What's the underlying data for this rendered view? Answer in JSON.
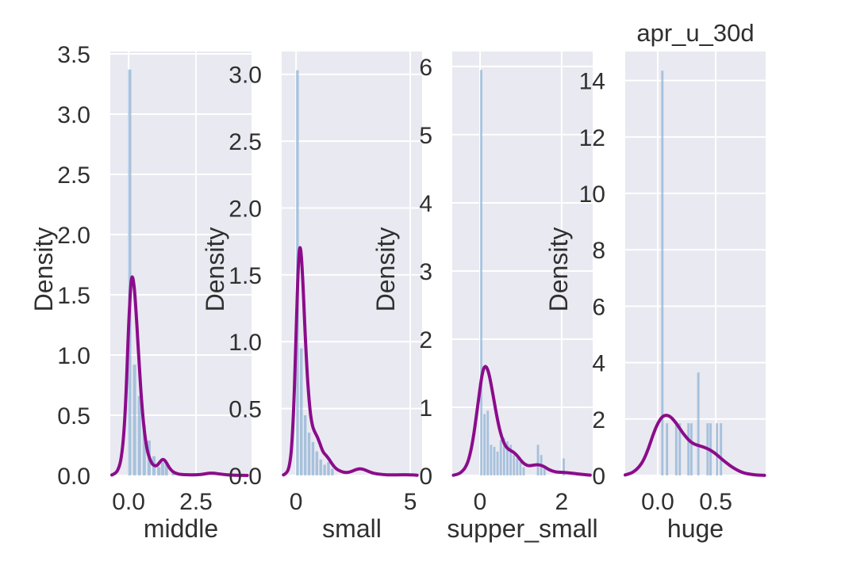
{
  "figure": {
    "title": "apr_u_30d",
    "style": {
      "axes_background": "#e9e9f1",
      "grid_color": "#ffffff",
      "bar_color": "#7ba7cf",
      "bar_opacity": 0.6,
      "kde_color": "#8b0c8b",
      "text_color": "#303030",
      "background": "#ffffff"
    }
  },
  "chart_data": [
    {
      "type": "histogram+kde",
      "xlabel": "middle",
      "ylabel": "Density",
      "xlim": [
        -0.68,
        4.56
      ],
      "ylim": [
        0,
        3.52
      ],
      "xticks": {
        "values": [
          0.0,
          2.5
        ],
        "labels": [
          "0.0",
          "2.5"
        ]
      },
      "yticks": {
        "values": [
          0,
          0.5,
          1.0,
          1.5,
          2.0,
          2.5,
          3.0,
          3.5
        ],
        "labels": [
          "0.0",
          "0.5",
          "1.0",
          "1.5",
          "2.0",
          "2.5",
          "3.0",
          "3.5"
        ]
      },
      "bar_width": 0.12,
      "bars": [
        [
          0.04,
          3.37
        ],
        [
          0.22,
          0.92
        ],
        [
          0.4,
          0.66
        ],
        [
          0.58,
          0.42
        ],
        [
          0.76,
          0.29
        ],
        [
          0.94,
          0.16
        ],
        [
          1.12,
          0.07
        ],
        [
          1.26,
          0.11
        ],
        [
          1.4,
          0.09
        ],
        [
          1.66,
          0.03
        ]
      ],
      "kde": [
        [
          -0.62,
          0.004
        ],
        [
          -0.5,
          0.015
        ],
        [
          -0.38,
          0.05
        ],
        [
          -0.27,
          0.14
        ],
        [
          -0.17,
          0.35
        ],
        [
          -0.08,
          0.75
        ],
        [
          0.0,
          1.25
        ],
        [
          0.08,
          1.6
        ],
        [
          0.14,
          1.67
        ],
        [
          0.22,
          1.55
        ],
        [
          0.3,
          1.28
        ],
        [
          0.38,
          0.97
        ],
        [
          0.46,
          0.68
        ],
        [
          0.54,
          0.46
        ],
        [
          0.62,
          0.3
        ],
        [
          0.7,
          0.2
        ],
        [
          0.78,
          0.14
        ],
        [
          0.86,
          0.1
        ],
        [
          0.95,
          0.08
        ],
        [
          1.05,
          0.08
        ],
        [
          1.15,
          0.11
        ],
        [
          1.25,
          0.135
        ],
        [
          1.33,
          0.13
        ],
        [
          1.42,
          0.1
        ],
        [
          1.52,
          0.06
        ],
        [
          1.64,
          0.03
        ],
        [
          1.78,
          0.015
        ],
        [
          1.95,
          0.008
        ],
        [
          2.2,
          0.005
        ],
        [
          2.5,
          0.005
        ],
        [
          2.75,
          0.01
        ],
        [
          2.95,
          0.018
        ],
        [
          3.1,
          0.02
        ],
        [
          3.3,
          0.015
        ],
        [
          3.55,
          0.007
        ],
        [
          3.8,
          0.003
        ],
        [
          4.1,
          0.001
        ],
        [
          4.4,
          0.0
        ]
      ]
    },
    {
      "type": "histogram+kde",
      "xlabel": "small",
      "ylabel": "Density",
      "xlim": [
        -0.63,
        5.52
      ],
      "ylim": [
        0,
        3.17
      ],
      "xticks": {
        "values": [
          0,
          5
        ],
        "labels": [
          "0",
          "5"
        ]
      },
      "yticks": {
        "values": [
          0,
          0.5,
          1.0,
          1.5,
          2.0,
          2.5,
          3.0
        ],
        "labels": [
          "0.0",
          "0.5",
          "1.0",
          "1.5",
          "2.0",
          "2.5",
          "3.0"
        ]
      },
      "bar_width": 0.12,
      "bars": [
        [
          0.06,
          3.03
        ],
        [
          0.23,
          0.95
        ],
        [
          0.4,
          0.45
        ],
        [
          0.57,
          0.32
        ],
        [
          0.74,
          0.25
        ],
        [
          0.91,
          0.18
        ],
        [
          1.08,
          0.12
        ],
        [
          1.25,
          0.08
        ],
        [
          1.42,
          0.1
        ],
        [
          1.59,
          0.05
        ]
      ],
      "kde": [
        [
          -0.55,
          0.004
        ],
        [
          -0.42,
          0.015
        ],
        [
          -0.3,
          0.06
        ],
        [
          -0.2,
          0.18
        ],
        [
          -0.1,
          0.5
        ],
        [
          0.0,
          1.05
        ],
        [
          0.08,
          1.5
        ],
        [
          0.15,
          1.72
        ],
        [
          0.22,
          1.68
        ],
        [
          0.3,
          1.45
        ],
        [
          0.4,
          1.05
        ],
        [
          0.5,
          0.72
        ],
        [
          0.6,
          0.5
        ],
        [
          0.7,
          0.38
        ],
        [
          0.8,
          0.33
        ],
        [
          0.9,
          0.3
        ],
        [
          1.0,
          0.26
        ],
        [
          1.1,
          0.21
        ],
        [
          1.2,
          0.17
        ],
        [
          1.32,
          0.15
        ],
        [
          1.45,
          0.12
        ],
        [
          1.6,
          0.08
        ],
        [
          1.75,
          0.05
        ],
        [
          1.95,
          0.03
        ],
        [
          2.2,
          0.02
        ],
        [
          2.45,
          0.03
        ],
        [
          2.7,
          0.05
        ],
        [
          2.9,
          0.05
        ],
        [
          3.1,
          0.035
        ],
        [
          3.4,
          0.015
        ],
        [
          3.8,
          0.006
        ],
        [
          4.2,
          0.004
        ],
        [
          4.6,
          0.006
        ],
        [
          5.0,
          0.005
        ],
        [
          5.3,
          0.002
        ]
      ]
    },
    {
      "type": "histogram+kde",
      "xlabel": "supper_small",
      "ylabel": "Density",
      "xlim": [
        -0.68,
        2.76
      ],
      "ylim": [
        0,
        6.22
      ],
      "xticks": {
        "values": [
          0,
          2
        ],
        "labels": [
          "0",
          "2"
        ]
      },
      "yticks": {
        "values": [
          0,
          1,
          2,
          3,
          4,
          5,
          6
        ],
        "labels": [
          "0",
          "1",
          "2",
          "3",
          "4",
          "5",
          "6"
        ]
      },
      "bar_width": 0.055,
      "bars": [
        [
          0.03,
          5.95
        ],
        [
          0.11,
          0.9
        ],
        [
          0.19,
          0.95
        ],
        [
          0.27,
          0.45
        ],
        [
          0.35,
          0.42
        ],
        [
          0.43,
          0.35
        ],
        [
          0.51,
          0.52
        ],
        [
          0.59,
          0.55
        ],
        [
          0.67,
          0.5
        ],
        [
          0.75,
          0.45
        ],
        [
          0.83,
          0.3
        ],
        [
          0.91,
          0.25
        ],
        [
          0.99,
          0.2
        ],
        [
          1.07,
          0.12
        ],
        [
          1.42,
          0.45
        ],
        [
          1.5,
          0.3
        ],
        [
          1.58,
          0.1
        ],
        [
          2.05,
          0.25
        ]
      ],
      "kde": [
        [
          -0.65,
          0.004
        ],
        [
          -0.55,
          0.015
        ],
        [
          -0.45,
          0.05
        ],
        [
          -0.35,
          0.12
        ],
        [
          -0.25,
          0.28
        ],
        [
          -0.15,
          0.6
        ],
        [
          -0.05,
          1.05
        ],
        [
          0.05,
          1.5
        ],
        [
          0.12,
          1.62
        ],
        [
          0.2,
          1.55
        ],
        [
          0.3,
          1.25
        ],
        [
          0.4,
          0.9
        ],
        [
          0.5,
          0.62
        ],
        [
          0.6,
          0.45
        ],
        [
          0.7,
          0.38
        ],
        [
          0.8,
          0.35
        ],
        [
          0.9,
          0.3
        ],
        [
          1.0,
          0.22
        ],
        [
          1.1,
          0.16
        ],
        [
          1.2,
          0.14
        ],
        [
          1.3,
          0.15
        ],
        [
          1.4,
          0.16
        ],
        [
          1.5,
          0.15
        ],
        [
          1.6,
          0.12
        ],
        [
          1.7,
          0.08
        ],
        [
          1.85,
          0.05
        ],
        [
          2.0,
          0.045
        ],
        [
          2.15,
          0.04
        ],
        [
          2.3,
          0.03
        ],
        [
          2.5,
          0.015
        ],
        [
          2.7,
          0.005
        ]
      ]
    },
    {
      "type": "histogram+kde",
      "title": "apr_u_30d",
      "xlabel": "huge",
      "ylabel": "Density",
      "xlim": [
        -0.28,
        0.93
      ],
      "ylim": [
        0,
        15.03
      ],
      "xticks": {
        "values": [
          0.0,
          0.5
        ],
        "labels": [
          "0.0",
          "0.5"
        ]
      },
      "yticks": {
        "values": [
          0,
          2,
          4,
          6,
          8,
          10,
          12,
          14
        ],
        "labels": [
          "0",
          "2",
          "4",
          "6",
          "8",
          "10",
          "12",
          "14"
        ]
      },
      "bar_width": 0.02,
      "bars": [
        [
          0.04,
          14.35
        ],
        [
          0.08,
          1.85
        ],
        [
          0.16,
          1.85
        ],
        [
          0.19,
          1.85
        ],
        [
          0.265,
          1.85
        ],
        [
          0.29,
          1.85
        ],
        [
          0.35,
          3.65
        ],
        [
          0.43,
          1.85
        ],
        [
          0.455,
          1.85
        ],
        [
          0.51,
          1.85
        ],
        [
          0.545,
          1.85
        ]
      ],
      "kde": [
        [
          -0.28,
          0.02
        ],
        [
          -0.24,
          0.06
        ],
        [
          -0.2,
          0.15
        ],
        [
          -0.16,
          0.3
        ],
        [
          -0.12,
          0.55
        ],
        [
          -0.08,
          0.95
        ],
        [
          -0.04,
          1.45
        ],
        [
          0.0,
          1.85
        ],
        [
          0.04,
          2.1
        ],
        [
          0.08,
          2.15
        ],
        [
          0.12,
          2.05
        ],
        [
          0.16,
          1.85
        ],
        [
          0.2,
          1.6
        ],
        [
          0.24,
          1.38
        ],
        [
          0.28,
          1.2
        ],
        [
          0.32,
          1.1
        ],
        [
          0.36,
          1.05
        ],
        [
          0.4,
          1.0
        ],
        [
          0.44,
          0.93
        ],
        [
          0.48,
          0.83
        ],
        [
          0.52,
          0.7
        ],
        [
          0.56,
          0.55
        ],
        [
          0.6,
          0.42
        ],
        [
          0.64,
          0.3
        ],
        [
          0.68,
          0.2
        ],
        [
          0.72,
          0.12
        ],
        [
          0.76,
          0.07
        ],
        [
          0.8,
          0.04
        ],
        [
          0.84,
          0.02
        ],
        [
          0.88,
          0.008
        ],
        [
          0.92,
          0.003
        ]
      ]
    }
  ]
}
